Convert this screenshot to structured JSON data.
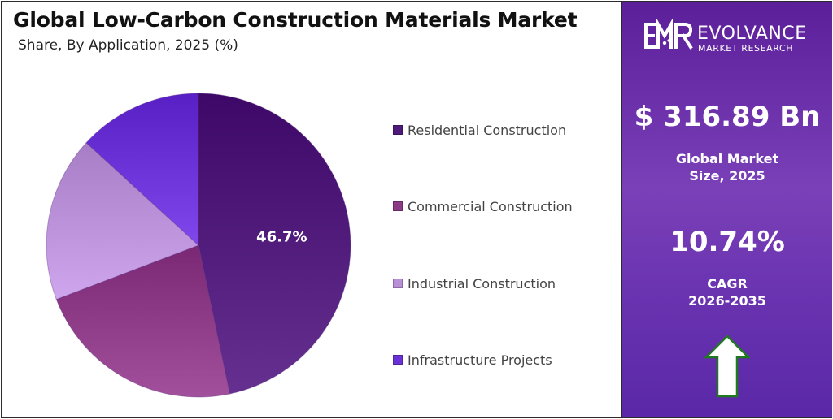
{
  "header": {
    "title": "Global Low-Carbon Construction Materials Market",
    "subtitle": "Share, By Application, 2025 (%)"
  },
  "chart_data": {
    "type": "pie",
    "categories": [
      "Residential Construction",
      "Commercial Construction",
      "Industrial Construction",
      "Infrastructure Projects"
    ],
    "values": [
      46.7,
      22.5,
      17.6,
      13.2
    ],
    "colors": [
      "#4f1a7a",
      "#8c3a86",
      "#b990d8",
      "#6a32d6"
    ],
    "data_labels": [
      "46.7%"
    ],
    "legend": "right"
  },
  "sidebar": {
    "brand_name": "EVOLVANCE",
    "brand_sub": "MARKET RESEARCH",
    "market_size_value": "$ 316.89 Bn",
    "market_size_label_line1": "Global Market",
    "market_size_label_line2": "Size, 2025",
    "cagr_value": "10.74%",
    "cagr_label_line1": "CAGR",
    "cagr_label_line2": "2026-2035",
    "arrow_icon": "up-arrow-icon"
  }
}
